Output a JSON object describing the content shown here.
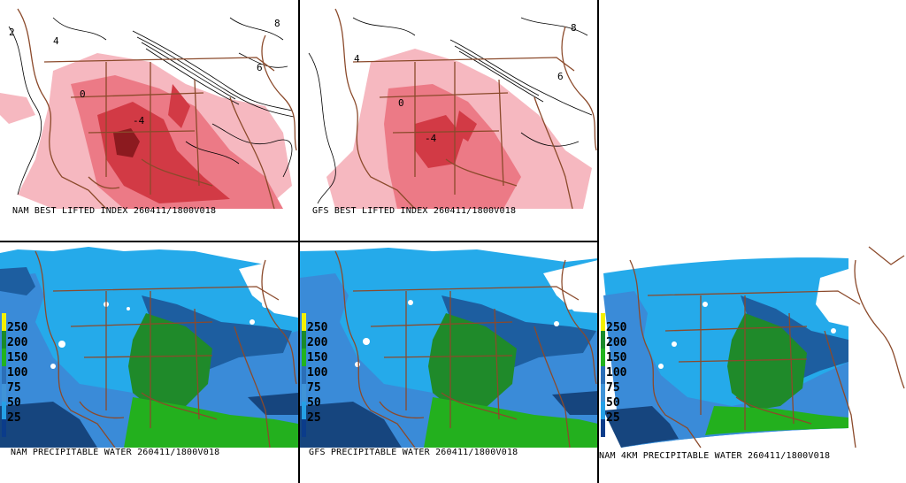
{
  "panels": {
    "nam_li": {
      "caption": "NAM BEST LIFTED INDEX 260411/1800V018"
    },
    "gfs_li": {
      "caption": "GFS BEST LIFTED INDEX 260411/1800V018"
    },
    "nam_pw": {
      "caption": "NAM PRECIPITABLE WATER 260411/1800V018"
    },
    "gfs_pw": {
      "caption": "GFS PRECIPITABLE WATER 260411/1800V018"
    },
    "nam4km_pw": {
      "caption": "NAM 4KM PRECIPITABLE WATER 260411/1800V018"
    }
  },
  "pw_scale": {
    "ticks": [
      "250",
      "200",
      "150",
      "100",
      "75",
      "50",
      "25"
    ],
    "colors": [
      "#f4f000",
      "#1a8a2a",
      "#22b31f",
      "#2b6fb8",
      "#3f93d8",
      "#25a0e6",
      "#0b3c8a"
    ]
  },
  "colors": {
    "li_light": "#f6b8c0",
    "li_mid": "#ec7a86",
    "li_dark": "#d23a45",
    "li_darkest": "#8c1a1f",
    "pw_white": "#ffffff",
    "pw_lightblue": "#25aaea",
    "pw_mediumblue": "#3a8bd8",
    "pw_darkblue": "#1d5ea0",
    "pw_navy": "#16457e",
    "pw_darkgreen": "#1f8a2a",
    "pw_green": "#23b01e",
    "border": "#8b4a2b",
    "contour": "#000000"
  },
  "contour_labels": [
    "4",
    "0",
    "-4",
    "2",
    "6",
    "8"
  ]
}
